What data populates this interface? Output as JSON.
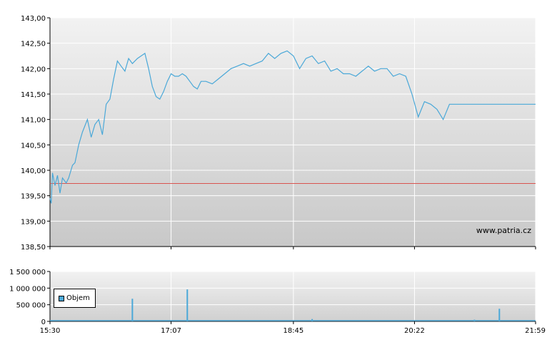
{
  "chart_data": [
    {
      "type": "line",
      "y_ticks": [
        "143,00",
        "142,50",
        "142,00",
        "141,50",
        "141,00",
        "140,50",
        "140,00",
        "139,50",
        "139,00",
        "138,50"
      ],
      "ylim": [
        138.5,
        143.0
      ],
      "x_ticks": [
        "15:30",
        "17:07",
        "18:45",
        "20:22",
        "21:59"
      ],
      "reference_line": 139.74,
      "colors": {
        "series": "#4aa8d8",
        "reference": "#d9534f",
        "grid": "#ffffff",
        "bg_top": "#f0f0f0",
        "bg_bottom": "#c9c9c9"
      },
      "series": [
        {
          "x": [
            "15:30",
            "15:31",
            "15:32",
            "15:34",
            "15:36",
            "15:38",
            "15:40",
            "15:43",
            "15:45",
            "15:48",
            "15:50",
            "15:53",
            "15:56",
            "16:00",
            "16:03",
            "16:06",
            "16:09",
            "16:12",
            "16:15",
            "16:18",
            "16:21",
            "16:24",
            "16:27",
            "16:30",
            "16:33",
            "16:36",
            "16:40",
            "16:43",
            "16:46",
            "16:49",
            "16:52",
            "16:55",
            "16:58",
            "17:01",
            "17:04",
            "17:07",
            "17:10",
            "17:13",
            "17:16",
            "17:19",
            "17:22",
            "17:25",
            "17:28",
            "17:31",
            "17:35",
            "17:40",
            "17:45",
            "17:50",
            "17:55",
            "18:00",
            "18:05",
            "18:10",
            "18:15",
            "18:20",
            "18:25",
            "18:30",
            "18:35",
            "18:40",
            "18:45",
            "18:50",
            "18:55",
            "19:00",
            "19:05",
            "19:10",
            "19:15",
            "19:20",
            "19:25",
            "19:30",
            "19:35",
            "19:40",
            "19:45",
            "19:50",
            "19:55",
            "20:00",
            "20:05",
            "20:10",
            "20:15",
            "20:20",
            "20:25",
            "20:30",
            "20:35",
            "20:40",
            "20:45",
            "20:50",
            "20:55",
            "21:00",
            "21:05",
            "21:10",
            "21:15",
            "21:20",
            "21:25",
            "21:30",
            "21:35",
            "21:40",
            "21:45",
            "21:50",
            "21:53",
            "21:55",
            "21:57",
            "21:59"
          ],
          "values": [
            139.45,
            139.35,
            139.95,
            139.7,
            139.9,
            139.55,
            139.85,
            139.75,
            139.85,
            140.1,
            140.15,
            140.5,
            140.75,
            141.0,
            140.65,
            140.9,
            141.0,
            140.7,
            141.3,
            141.4,
            141.8,
            142.15,
            142.05,
            141.95,
            142.2,
            142.1,
            142.2,
            142.25,
            142.3,
            142.0,
            141.65,
            141.45,
            141.4,
            141.55,
            141.75,
            141.9,
            141.85,
            141.85,
            141.9,
            141.85,
            141.75,
            141.65,
            141.6,
            141.75,
            141.75,
            141.7,
            141.8,
            141.9,
            142.0,
            142.05,
            142.1,
            142.05,
            142.1,
            142.15,
            142.3,
            142.2,
            142.3,
            142.35,
            142.25,
            142.0,
            142.2,
            142.25,
            142.1,
            142.15,
            141.95,
            142.0,
            141.9,
            141.9,
            141.85,
            141.95,
            142.05,
            141.95,
            142.0,
            142.0,
            141.85,
            141.9,
            141.85,
            141.5,
            141.05,
            141.35,
            141.3,
            141.2,
            141.0,
            141.3,
            141.3,
            141.3,
            141.3,
            141.3,
            141.3,
            141.3,
            141.3,
            141.3,
            141.3,
            141.3,
            141.3,
            141.3,
            141.3,
            141.3,
            141.3,
            141.3
          ]
        }
      ]
    },
    {
      "type": "bar",
      "y_ticks": [
        "1 500 000",
        "1 000 000",
        "500 000",
        "0"
      ],
      "ylim": [
        0,
        1500000
      ],
      "x_ticks": [
        "15:30",
        "17:07",
        "18:45",
        "20:22",
        "21:59"
      ],
      "legend": "Objem",
      "colors": {
        "bar": "#4aa8d8"
      },
      "x": [
        "16:36",
        "17:20",
        "19:00",
        "21:10",
        "21:30"
      ],
      "values": [
        680000,
        960000,
        70000,
        50000,
        380000
      ]
    }
  ],
  "watermark": "www.patria.cz"
}
